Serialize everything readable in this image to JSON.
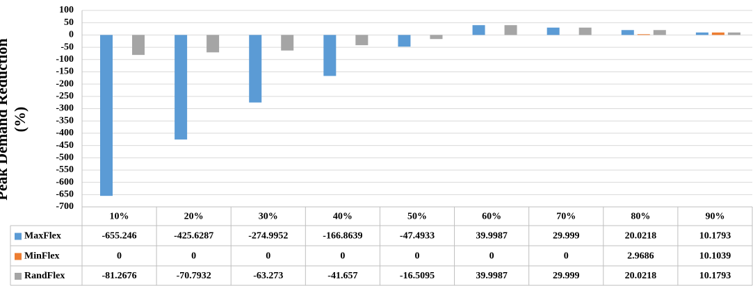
{
  "chart_data": {
    "type": "bar",
    "y_label": "Peak Demand Reduction (%)",
    "categories": [
      "10%",
      "20%",
      "30%",
      "40%",
      "50%",
      "60%",
      "70%",
      "80%",
      "90%"
    ],
    "series": [
      {
        "name": "MaxFlex",
        "color": "#5b9bd5",
        "values": [
          -655.246,
          -425.6287,
          -274.9952,
          -166.8639,
          -47.4933,
          39.9987,
          29.999,
          20.0218,
          10.1793
        ]
      },
      {
        "name": "MinFlex",
        "color": "#ed7d31",
        "values": [
          0,
          0,
          0,
          0,
          0,
          0,
          0,
          2.9686,
          10.1039
        ]
      },
      {
        "name": "RandFlex",
        "color": "#a5a5a5",
        "values": [
          -81.2676,
          -70.7932,
          -63.273,
          -41.657,
          -16.5095,
          39.9987,
          29.999,
          20.0218,
          10.1793
        ]
      }
    ],
    "ylim": [
      -700,
      100
    ],
    "yticks": [
      100,
      50,
      0,
      -50,
      -100,
      -150,
      -200,
      -250,
      -300,
      -350,
      -400,
      -450,
      -500,
      -550,
      -600,
      -650,
      -700
    ],
    "grid": true,
    "legend": "table"
  }
}
